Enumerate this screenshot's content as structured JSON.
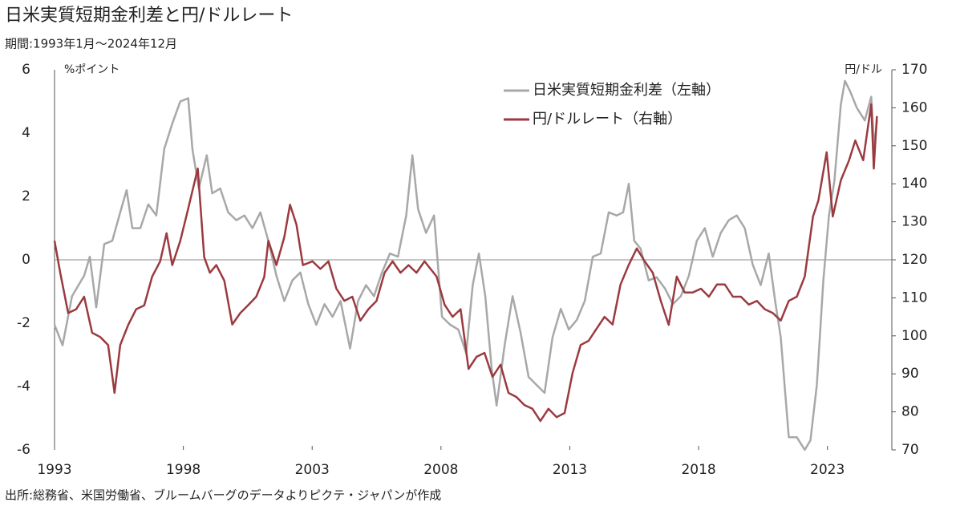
{
  "chart_data": {
    "type": "line",
    "title": "日米実質短期金利差と円/ドルレート",
    "subtitle": "期間:1993年1月～2024年12月",
    "source": "出所:総務省、米国労働省、ブルームバーグのデータよりピクテ・ジャパンが作成",
    "ylabel": "%ポイント",
    "y2label": "円/ドル",
    "legend": "top-center",
    "xlim": [
      1993,
      2025.5
    ],
    "xticks": [
      1993,
      1998,
      2003,
      2008,
      2013,
      2018,
      2023
    ],
    "ylim": [
      -6,
      6
    ],
    "yticks": [
      6,
      4,
      2,
      0,
      -2,
      -4,
      -6
    ],
    "y2lim": [
      70,
      170
    ],
    "y2ticks": [
      170,
      160,
      150,
      140,
      130,
      120,
      110,
      100,
      90,
      80,
      70
    ],
    "series": [
      {
        "name": "日米実質短期金利差（左軸）",
        "color": "#a8a8a8",
        "axis": "y",
        "x": [
          1993.0,
          1993.31,
          1993.68,
          1994.15,
          1994.37,
          1994.62,
          1994.93,
          1995.24,
          1995.55,
          1995.8,
          1996.02,
          1996.33,
          1996.64,
          1996.95,
          1997.26,
          1997.57,
          1997.88,
          1998.19,
          1998.35,
          1998.6,
          1998.91,
          1999.12,
          1999.43,
          1999.74,
          2000.06,
          2000.37,
          2000.68,
          2000.99,
          2001.3,
          2001.61,
          2001.92,
          2002.23,
          2002.54,
          2002.85,
          2003.16,
          2003.48,
          2003.79,
          2004.1,
          2004.47,
          2004.78,
          2005.09,
          2005.4,
          2005.71,
          2006.02,
          2006.33,
          2006.65,
          2006.89,
          2007.11,
          2007.42,
          2007.73,
          2008.04,
          2008.36,
          2008.67,
          2008.98,
          2009.23,
          2009.47,
          2009.72,
          2009.97,
          2010.16,
          2010.47,
          2010.78,
          2011.09,
          2011.4,
          2011.71,
          2012.02,
          2012.33,
          2012.65,
          2012.96,
          2013.27,
          2013.58,
          2013.89,
          2014.2,
          2014.51,
          2014.82,
          2015.07,
          2015.29,
          2015.5,
          2015.75,
          2016.06,
          2016.37,
          2016.69,
          2017.0,
          2017.31,
          2017.62,
          2017.93,
          2018.24,
          2018.55,
          2018.86,
          2019.17,
          2019.48,
          2019.79,
          2020.1,
          2020.41,
          2020.72,
          2020.97,
          2021.19,
          2021.5,
          2021.81,
          2022.12,
          2022.34,
          2022.59,
          2022.84,
          2023.06,
          2023.27,
          2023.52,
          2023.68,
          2023.89,
          2024.14,
          2024.45,
          2024.7,
          2024.82,
          2024.92
        ],
        "values": [
          -2.05,
          -2.7,
          -1.15,
          -0.5,
          0.1,
          -1.5,
          0.5,
          0.6,
          1.5,
          2.2,
          1.0,
          1.0,
          1.75,
          1.4,
          3.5,
          4.3,
          5.0,
          5.1,
          3.5,
          2.25,
          3.3,
          2.1,
          2.25,
          1.5,
          1.25,
          1.4,
          1.0,
          1.5,
          0.6,
          -0.5,
          -1.3,
          -0.65,
          -0.4,
          -1.4,
          -2.05,
          -1.4,
          -1.8,
          -1.3,
          -2.8,
          -1.3,
          -0.8,
          -1.15,
          -0.4,
          0.2,
          0.1,
          1.4,
          3.3,
          1.6,
          0.85,
          1.4,
          -1.8,
          -2.05,
          -2.2,
          -2.95,
          -0.8,
          0.2,
          -1.15,
          -3.45,
          -4.6,
          -2.7,
          -1.15,
          -2.3,
          -3.7,
          -3.95,
          -4.2,
          -2.45,
          -1.55,
          -2.2,
          -1.9,
          -1.3,
          0.1,
          0.2,
          1.5,
          1.4,
          1.5,
          2.4,
          0.6,
          0.35,
          -0.65,
          -0.55,
          -0.9,
          -1.4,
          -1.15,
          -0.5,
          0.6,
          1.0,
          0.1,
          0.85,
          1.25,
          1.4,
          1.0,
          -0.15,
          -0.8,
          0.2,
          -1.3,
          -2.45,
          -5.6,
          -5.6,
          -6.0,
          -5.7,
          -3.95,
          -0.65,
          1.4,
          2.5,
          4.9,
          5.65,
          5.3,
          4.8,
          4.4,
          5.15,
          3.5,
          4.4
        ]
      },
      {
        "name": "円/ドルレート（右軸）",
        "color": "#9b3a3f",
        "axis": "y2",
        "x": [
          1993.0,
          1993.22,
          1993.53,
          1993.84,
          1994.15,
          1994.46,
          1994.77,
          1995.08,
          1995.33,
          1995.55,
          1995.86,
          1996.17,
          1996.48,
          1996.79,
          1997.1,
          1997.35,
          1997.57,
          1997.88,
          1998.19,
          1998.56,
          1998.81,
          1999.03,
          1999.28,
          1999.59,
          1999.9,
          2000.21,
          2000.52,
          2000.83,
          2001.14,
          2001.3,
          2001.61,
          2001.92,
          2002.14,
          2002.39,
          2002.64,
          2003.01,
          2003.32,
          2003.63,
          2003.94,
          2004.25,
          2004.56,
          2004.87,
          2005.18,
          2005.5,
          2005.81,
          2006.12,
          2006.43,
          2006.74,
          2007.05,
          2007.36,
          2007.83,
          2008.14,
          2008.45,
          2008.76,
          2009.07,
          2009.38,
          2009.69,
          2010.0,
          2010.31,
          2010.62,
          2010.93,
          2011.24,
          2011.55,
          2011.86,
          2012.17,
          2012.49,
          2012.8,
          2013.11,
          2013.42,
          2013.73,
          2014.04,
          2014.35,
          2014.66,
          2014.97,
          2015.29,
          2015.6,
          2015.91,
          2016.22,
          2016.53,
          2016.84,
          2017.15,
          2017.46,
          2017.77,
          2018.09,
          2018.4,
          2018.71,
          2019.02,
          2019.33,
          2019.64,
          2019.95,
          2020.26,
          2020.57,
          2020.88,
          2021.19,
          2021.5,
          2021.81,
          2022.12,
          2022.44,
          2022.65,
          2022.97,
          2023.21,
          2023.52,
          2023.84,
          2024.08,
          2024.39,
          2024.61,
          2024.7,
          2024.8,
          2024.87,
          2024.92
        ],
        "values": [
          125,
          116.6,
          106,
          107,
          110.3,
          100.8,
          99.7,
          97.6,
          85,
          97.6,
          102.9,
          107,
          108,
          115.6,
          119.6,
          127,
          118.6,
          125,
          133.5,
          144,
          120.7,
          116.6,
          118.6,
          114.5,
          103,
          106,
          108.1,
          110.3,
          115.5,
          125,
          118.6,
          126,
          134.5,
          129.3,
          118.6,
          119.6,
          117.6,
          119.6,
          112.4,
          109.2,
          110.3,
          104,
          107,
          109.2,
          116.6,
          119.6,
          116.6,
          118.6,
          116.6,
          119.6,
          115.6,
          108.2,
          105,
          107,
          91.3,
          94.5,
          95.5,
          89.2,
          92.4,
          85,
          83.9,
          81.8,
          80.8,
          77.6,
          80.8,
          78.6,
          79.7,
          90.3,
          97.6,
          98.7,
          101.9,
          105,
          103,
          113.5,
          118.7,
          123,
          119.6,
          116.6,
          109.2,
          102.9,
          115.6,
          111.4,
          111.4,
          112.4,
          110.3,
          113.5,
          113.5,
          110.3,
          110.3,
          108.2,
          109.2,
          107,
          106,
          104,
          109.2,
          110.3,
          115.6,
          131.4,
          135.6,
          148.3,
          131.4,
          140.9,
          146.2,
          151.4,
          146.2,
          156.7,
          160.9,
          144,
          152.5,
          157.8
        ]
      }
    ]
  }
}
